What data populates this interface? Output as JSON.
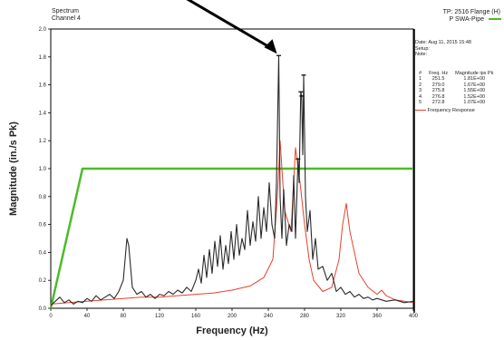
{
  "header": {
    "left_line1": "Spectrum",
    "left_line2": "Channel 4",
    "right_line1": "TP: 2516 Flange (H)",
    "right_line2": "P SWA-Pipe"
  },
  "panel": {
    "date": "Date: Aug 11, 2015 15:48",
    "setup": "Setup:",
    "note": "Note:",
    "table_header": [
      "#",
      "Freq. Hz",
      "Magnitude ips Pk"
    ],
    "rows": [
      [
        "1",
        "251.5",
        "1.81E+00"
      ],
      [
        "2",
        "279.0",
        "1.67E+00"
      ],
      [
        "3",
        "275.8",
        "1.55E+00"
      ],
      [
        "4",
        "276.8",
        "1.52E+00"
      ],
      [
        "5",
        "272.8",
        "1.07E+00"
      ]
    ],
    "legend_label": "Frequency Response"
  },
  "colors": {
    "spectrum": "#2b2b2b",
    "frequency_response": "#e8402a",
    "mask": "#4cbb2a",
    "arrow": "#000000"
  },
  "chart_data": {
    "type": "line",
    "xlabel": "Frequency (Hz)",
    "ylabel": "Magnitude (in./s Pk)",
    "xlim": [
      0,
      400
    ],
    "ylim": [
      0,
      2.0
    ],
    "x_ticks": [
      "0",
      "40",
      "80",
      "120",
      "160",
      "200",
      "240",
      "280",
      "320",
      "360",
      "400"
    ],
    "y_ticks": [
      "0.0",
      "0.2",
      "0.4",
      "0.6",
      "0.8",
      "1.0",
      "1.2",
      "1.4",
      "1.6",
      "1.8",
      "2.0"
    ],
    "grid": false,
    "series": [
      {
        "name": "P SWA-Pipe",
        "x": [
          0,
          35,
          400
        ],
        "y": [
          0,
          1.0,
          1.0
        ]
      },
      {
        "name": "Frequency Response",
        "x": [
          0,
          20,
          40,
          60,
          80,
          100,
          120,
          140,
          160,
          180,
          200,
          220,
          235,
          245,
          250,
          253,
          258,
          265,
          270,
          275,
          280,
          285,
          290,
          300,
          310,
          318,
          322,
          326,
          330,
          340,
          350,
          360,
          365,
          370,
          380,
          390,
          400
        ],
        "y": [
          0.03,
          0.04,
          0.05,
          0.06,
          0.07,
          0.08,
          0.08,
          0.09,
          0.1,
          0.11,
          0.13,
          0.16,
          0.22,
          0.35,
          0.8,
          1.2,
          0.7,
          0.55,
          1.15,
          0.9,
          0.6,
          0.35,
          0.2,
          0.12,
          0.15,
          0.35,
          0.6,
          0.75,
          0.55,
          0.25,
          0.15,
          0.1,
          0.13,
          0.09,
          0.06,
          0.05,
          0.04
        ]
      },
      {
        "name": "Spectrum",
        "x": [
          0,
          5,
          10,
          15,
          20,
          25,
          30,
          35,
          40,
          45,
          50,
          55,
          60,
          65,
          70,
          75,
          80,
          82,
          84,
          86,
          88,
          90,
          95,
          100,
          105,
          110,
          115,
          120,
          125,
          130,
          135,
          140,
          145,
          150,
          155,
          160,
          163,
          166,
          169,
          172,
          175,
          178,
          181,
          184,
          187,
          190,
          193,
          196,
          199,
          202,
          205,
          208,
          211,
          214,
          217,
          220,
          223,
          226,
          229,
          232,
          235,
          238,
          241,
          244,
          247,
          249,
          251.5,
          253,
          255,
          257,
          260,
          263,
          266,
          268,
          270,
          272.8,
          274,
          275.8,
          276.8,
          278,
          279,
          281,
          283,
          286,
          289,
          292,
          295,
          300,
          305,
          310,
          315,
          320,
          325,
          330,
          335,
          340,
          345,
          350,
          355,
          360,
          370,
          380,
          390,
          400
        ],
        "y": [
          0.02,
          0.05,
          0.08,
          0.04,
          0.06,
          0.03,
          0.05,
          0.04,
          0.07,
          0.05,
          0.09,
          0.06,
          0.08,
          0.1,
          0.07,
          0.12,
          0.2,
          0.35,
          0.5,
          0.45,
          0.3,
          0.15,
          0.1,
          0.12,
          0.08,
          0.1,
          0.07,
          0.1,
          0.09,
          0.12,
          0.1,
          0.13,
          0.11,
          0.15,
          0.12,
          0.2,
          0.28,
          0.18,
          0.38,
          0.22,
          0.42,
          0.25,
          0.48,
          0.3,
          0.52,
          0.28,
          0.45,
          0.32,
          0.55,
          0.35,
          0.6,
          0.38,
          0.5,
          0.42,
          0.7,
          0.45,
          0.62,
          0.48,
          0.8,
          0.5,
          0.72,
          0.55,
          0.9,
          0.6,
          0.5,
          0.9,
          1.81,
          0.8,
          0.5,
          0.85,
          0.45,
          0.6,
          0.55,
          0.95,
          0.5,
          1.07,
          0.9,
          1.55,
          1.52,
          1.1,
          1.67,
          0.8,
          0.55,
          0.7,
          0.35,
          0.5,
          0.28,
          0.3,
          0.2,
          0.25,
          0.12,
          0.15,
          0.1,
          0.12,
          0.08,
          0.1,
          0.07,
          0.08,
          0.06,
          0.07,
          0.05,
          0.06,
          0.04,
          0.05
        ]
      }
    ],
    "peaks": [
      {
        "x": 251.5,
        "y": 1.81
      },
      {
        "x": 279.0,
        "y": 1.67
      },
      {
        "x": 275.8,
        "y": 1.55
      },
      {
        "x": 276.8,
        "y": 1.52
      },
      {
        "x": 272.8,
        "y": 1.07
      }
    ]
  }
}
